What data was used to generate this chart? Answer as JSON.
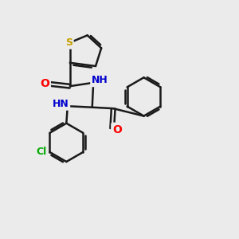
{
  "background_color": "#ebebeb",
  "bond_color": "#1a1a1a",
  "S_color": "#c8a000",
  "N_color": "#0000cd",
  "O_color": "#ff0000",
  "Cl_color": "#00aa00",
  "bond_width": 1.8,
  "figsize": [
    3.0,
    3.0
  ],
  "dpi": 100,
  "xlim": [
    0,
    10
  ],
  "ylim": [
    0,
    10
  ]
}
